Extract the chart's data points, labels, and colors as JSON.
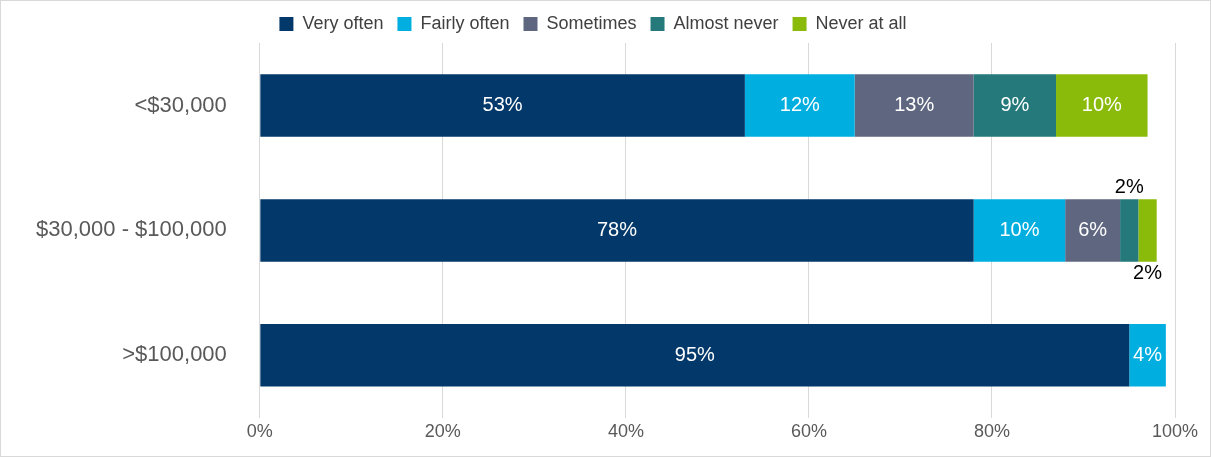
{
  "chart_data": {
    "type": "bar",
    "orientation": "horizontal",
    "stacked": true,
    "categories": [
      "<$30,000",
      "$30,000 - $100,000",
      ">$100,000"
    ],
    "series": [
      {
        "name": "Very often",
        "color": "#03386b",
        "values": [
          53,
          78,
          95
        ],
        "value_labels": [
          "53%",
          "78%",
          "95%"
        ]
      },
      {
        "name": "Fairly often",
        "color": "#00aee0",
        "values": [
          12,
          10,
          4
        ],
        "value_labels": [
          "12%",
          "10%",
          "4%"
        ]
      },
      {
        "name": "Sometimes",
        "color": "#5f6680",
        "values": [
          13,
          6,
          null
        ],
        "value_labels": [
          "13%",
          "6%",
          null
        ]
      },
      {
        "name": "Almost never",
        "color": "#25797a",
        "values": [
          9,
          2,
          null
        ],
        "value_labels": [
          "9%",
          "2%",
          null
        ]
      },
      {
        "name": "Never at all",
        "color": "#8bbb0a",
        "values": [
          10,
          2,
          null
        ],
        "value_labels": [
          "10%",
          "2%",
          null
        ]
      }
    ],
    "xlim": [
      0,
      100
    ],
    "xticks": [
      {
        "value": 0,
        "label": "0%"
      },
      {
        "value": 20,
        "label": "20%"
      },
      {
        "value": 40,
        "label": "40%"
      },
      {
        "value": 60,
        "label": "60%"
      },
      {
        "value": 80,
        "label": "80%"
      },
      {
        "value": 100,
        "label": "100%"
      }
    ],
    "grid": "x",
    "legend": "top"
  }
}
